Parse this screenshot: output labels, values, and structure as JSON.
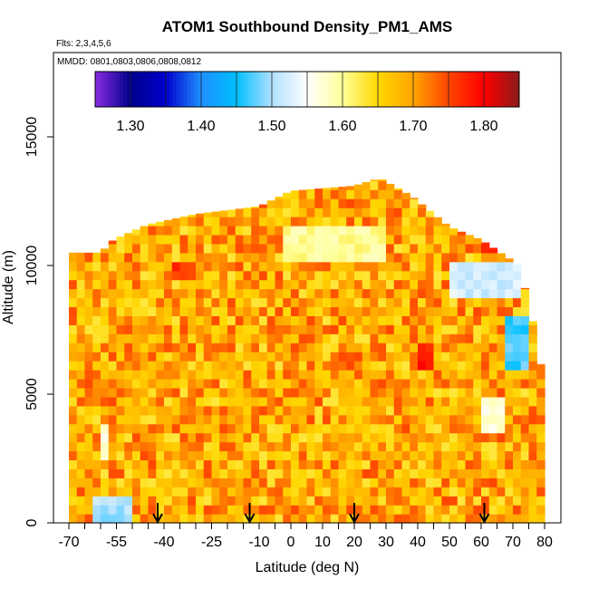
{
  "chart_data": {
    "type": "heatmap",
    "title": "ATOM1 Southbound Density_PM1_AMS",
    "subtitle": "Flts: 2,3,4,5,6",
    "annotation": "MMDD: 0801,0803,0806,0808,0812",
    "xlabel": "Latitude (deg N)",
    "ylabel": "Altitude (m)",
    "xlim": [
      -70,
      80
    ],
    "ylim": [
      0,
      17500
    ],
    "x_ticks": [
      -70,
      -55,
      -40,
      -25,
      -10,
      0,
      10,
      20,
      30,
      40,
      50,
      60,
      70,
      80
    ],
    "x_tick_labels": [
      "-70",
      "-55",
      "-40",
      "-25",
      "-10",
      "0",
      "10",
      "20",
      "30",
      "40",
      "50",
      "60",
      "70",
      "80"
    ],
    "y_ticks": [
      0,
      5000,
      10000,
      15000
    ],
    "y_tick_labels": [
      "0",
      "5000",
      "10000",
      "15000"
    ],
    "colorbar": {
      "min": 1.25,
      "max": 1.85,
      "ticks": [
        1.3,
        1.4,
        1.5,
        1.6,
        1.7,
        1.8
      ],
      "tick_labels": [
        "1.30",
        "1.40",
        "1.50",
        "1.60",
        "1.70",
        "1.80"
      ],
      "colors": [
        "#8a2be2",
        "#00008b",
        "#0000cd",
        "#1e90ff",
        "#00bfff",
        "#b0e0ff",
        "#ffffff",
        "#ffff99",
        "#ffd700",
        "#ffa500",
        "#ff4500",
        "#ff0000",
        "#8b1a1a"
      ],
      "placement": "top"
    },
    "background_density": 1.69,
    "profile": [
      {
        "lat": -70,
        "top": 10500
      },
      {
        "lat": -60,
        "top": 10500
      },
      {
        "lat": -56,
        "top": 11000
      },
      {
        "lat": -45,
        "top": 11600
      },
      {
        "lat": -30,
        "top": 12000
      },
      {
        "lat": -10,
        "top": 12300
      },
      {
        "lat": 0,
        "top": 12900
      },
      {
        "lat": 20,
        "top": 13100
      },
      {
        "lat": 28,
        "top": 13400
      },
      {
        "lat": 38,
        "top": 12700
      },
      {
        "lat": 50,
        "top": 11500
      },
      {
        "lat": 60,
        "top": 11000
      },
      {
        "lat": 66,
        "top": 10500
      },
      {
        "lat": 72,
        "top": 10000
      },
      {
        "lat": 76,
        "top": 8000
      },
      {
        "lat": 79,
        "top": 6000
      },
      {
        "lat": 80,
        "top": 500
      }
    ],
    "regions": [
      {
        "x": [
          50,
          72
        ],
        "y": [
          8800,
          10000
        ],
        "value": 1.52
      },
      {
        "x": [
          68,
          75
        ],
        "y": [
          6100,
          7800
        ],
        "value": 1.47
      },
      {
        "x": [
          60,
          66
        ],
        "y": [
          3500,
          4800
        ],
        "value": 1.57
      },
      {
        "x": [
          -2,
          30
        ],
        "y": [
          10300,
          11500
        ],
        "value": 1.6
      },
      {
        "x": [
          -60,
          -58
        ],
        "y": [
          2500,
          3800
        ],
        "value": 1.58
      },
      {
        "x": [
          -62,
          -52
        ],
        "y": [
          300,
          800
        ],
        "value": 1.5
      },
      {
        "x": [
          60,
          70
        ],
        "y": [
          10600,
          11000
        ],
        "value": 1.76
      },
      {
        "x": [
          -37,
          -30
        ],
        "y": [
          9600,
          10100
        ],
        "value": 1.76
      },
      {
        "x": [
          40,
          45
        ],
        "y": [
          6200,
          6800
        ],
        "value": 1.78
      }
    ],
    "flight_markers_lat": [
      -42,
      -13,
      20,
      61
    ]
  }
}
